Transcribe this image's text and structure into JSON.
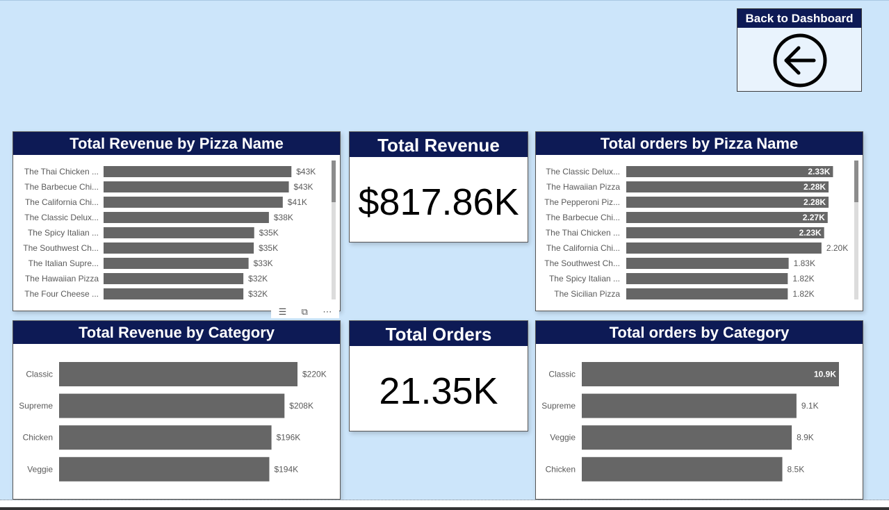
{
  "back_button": {
    "label": "Back to Dashboard",
    "icon": "arrow-left-circle-icon"
  },
  "cards": [
    {
      "title": "Total Revenue",
      "value": "$817.86K"
    },
    {
      "title": "Total Orders",
      "value": "21.35K"
    }
  ],
  "charts": {
    "revenue_by_name": {
      "title": "Total Revenue by Pizza Name"
    },
    "orders_by_name": {
      "title": "Total orders by Pizza Name"
    },
    "revenue_by_category": {
      "title": "Total Revenue by Category"
    },
    "orders_by_category": {
      "title": "Total orders by Category"
    }
  },
  "chart_data": [
    {
      "id": "revenue_by_name",
      "type": "bar",
      "orientation": "horizontal",
      "title": "Total Revenue by Pizza Name",
      "categories": [
        "The Thai Chicken ...",
        "The Barbecue Chi...",
        "The California Chi...",
        "The Classic Delux...",
        "The Spicy Italian ...",
        "The Southwest Ch...",
        "The Italian Supre...",
        "The Hawaiian Pizza",
        "The Four Cheese ..."
      ],
      "values": [
        43.4,
        42.8,
        41.4,
        38.2,
        34.8,
        34.7,
        33.5,
        32.3,
        32.3
      ],
      "data_labels": [
        "$43K",
        "$43K",
        "$41K",
        "$38K",
        "$35K",
        "$35K",
        "$33K",
        "$32K",
        "$32K"
      ],
      "xlim": [
        0,
        44
      ],
      "color": "#666666"
    },
    {
      "id": "orders_by_name",
      "type": "bar",
      "orientation": "horizontal",
      "title": "Total orders by Pizza Name",
      "categories": [
        "The Classic Delux...",
        "The Hawaiian Pizza",
        "The Pepperoni Piz...",
        "The Barbecue Chi...",
        "The Thai Chicken ...",
        "The California Chi...",
        "The Southwest Ch...",
        "The Spicy Italian ...",
        "The Sicilian Pizza"
      ],
      "values": [
        2.33,
        2.28,
        2.28,
        2.27,
        2.23,
        2.2,
        1.83,
        1.82,
        1.82
      ],
      "data_labels": [
        "2.33K",
        "2.28K",
        "2.28K",
        "2.27K",
        "2.23K",
        "2.20K",
        "1.83K",
        "1.82K",
        "1.82K"
      ],
      "labels_inside": [
        true,
        true,
        true,
        true,
        true,
        false,
        false,
        false,
        false
      ],
      "xlim": [
        0,
        2.35
      ],
      "color": "#666666"
    },
    {
      "id": "revenue_by_category",
      "type": "bar",
      "orientation": "horizontal",
      "title": "Total Revenue by Category",
      "categories": [
        "Classic",
        "Supreme",
        "Chicken",
        "Veggie"
      ],
      "values": [
        220,
        208,
        196,
        194
      ],
      "data_labels": [
        "$220K",
        "$208K",
        "$196K",
        "$194K"
      ],
      "xlim": [
        0,
        220
      ],
      "color": "#666666"
    },
    {
      "id": "orders_by_category",
      "type": "bar",
      "orientation": "horizontal",
      "title": "Total orders by Category",
      "categories": [
        "Classic",
        "Supreme",
        "Veggie",
        "Chicken"
      ],
      "values": [
        10.9,
        9.1,
        8.9,
        8.5
      ],
      "data_labels": [
        "10.9K",
        "9.1K",
        "8.9K",
        "8.5K"
      ],
      "labels_inside": [
        true,
        false,
        false,
        false
      ],
      "xlim": [
        0,
        10.9
      ],
      "color": "#666666"
    }
  ],
  "visual_header": {
    "icons": [
      "filter-icon",
      "focus-mode-icon",
      "more-options-icon"
    ]
  },
  "colors": {
    "background": "#cce5fa",
    "header": "#0d1a55",
    "bar": "#666666",
    "panel": "#ffffff"
  }
}
